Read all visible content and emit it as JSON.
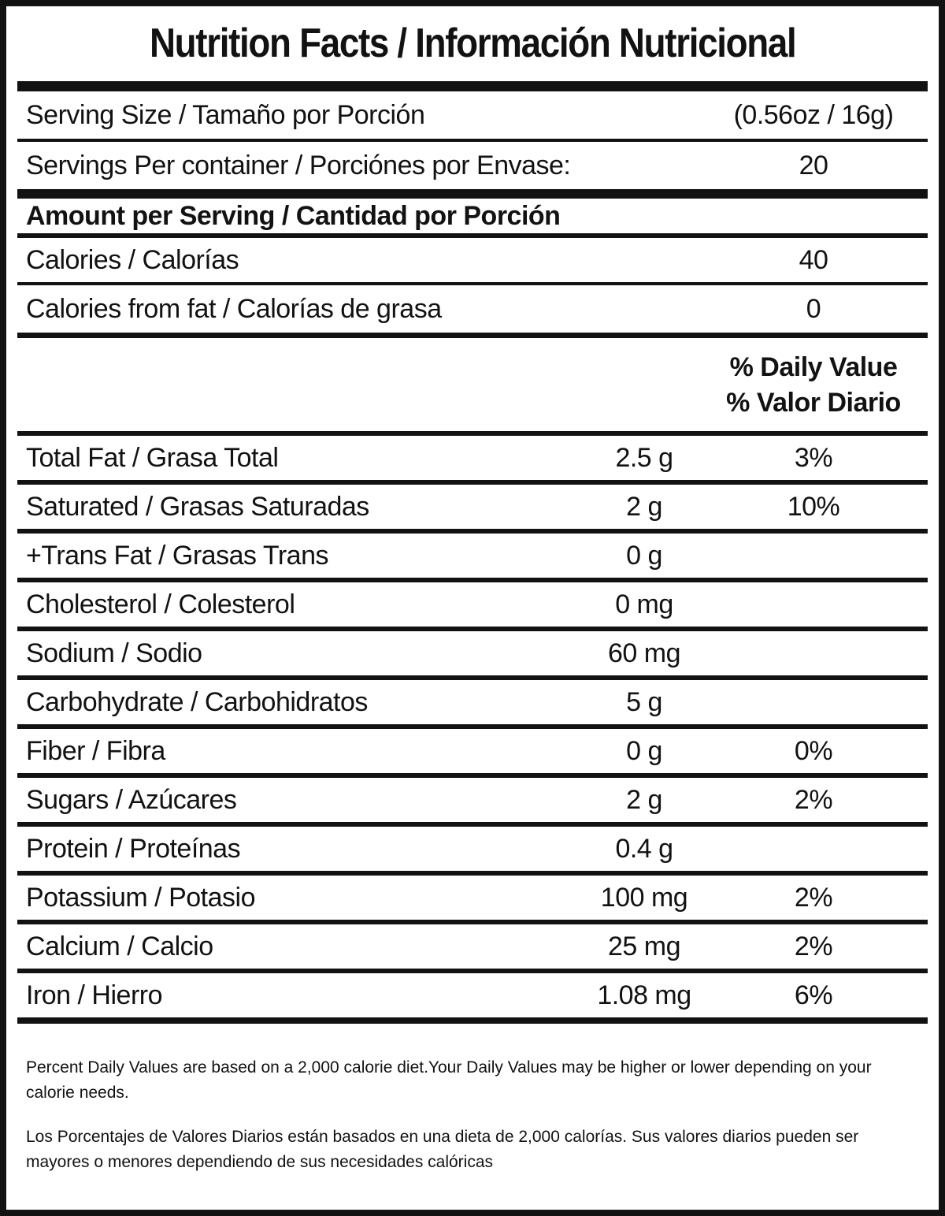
{
  "title": "Nutrition Facts / Información Nutricional",
  "serving_size": {
    "label": "Serving Size / Tamaño por Porción",
    "value": "(0.56oz / 16g)"
  },
  "servings_per_container": {
    "label": "Servings Per container / Porciónes por Envase:",
    "value": "20"
  },
  "amount_header": "Amount per Serving / Cantidad por Porción",
  "calories": {
    "label": "Calories / Calorías",
    "value": "40"
  },
  "calories_from_fat": {
    "label": "Calories from fat / Calorías de grasa",
    "value": "0"
  },
  "daily_value_header": {
    "line1": "% Daily Value",
    "line2": "% Valor Diario"
  },
  "nutrients": [
    {
      "label": "Total Fat / Grasa Total",
      "amount": "2.5 g",
      "dv": "3%"
    },
    {
      "label": "Saturated / Grasas Saturadas",
      "amount": "2 g",
      "dv": "10%"
    },
    {
      "label": "+Trans Fat / Grasas Trans",
      "amount": "0 g",
      "dv": ""
    },
    {
      "label": "Cholesterol / Colesterol",
      "amount": "0 mg",
      "dv": ""
    },
    {
      "label": "Sodium / Sodio",
      "amount": "60 mg",
      "dv": ""
    },
    {
      "label": "Carbohydrate / Carbohidratos",
      "amount": "5 g",
      "dv": ""
    },
    {
      "label": "Fiber / Fibra",
      "amount": "0 g",
      "dv": "0%"
    },
    {
      "label": "Sugars / Azúcares",
      "amount": "2 g",
      "dv": "2%"
    },
    {
      "label": "Protein / Proteínas",
      "amount": "0.4 g",
      "dv": ""
    },
    {
      "label": "Potassium / Potasio",
      "amount": "100 mg",
      "dv": "2%"
    },
    {
      "label": "Calcium / Calcio",
      "amount": "25 mg",
      "dv": "2%"
    },
    {
      "label": "Iron / Hierro",
      "amount": "1.08 mg",
      "dv": "6%"
    }
  ],
  "footnotes": {
    "english": "Percent Daily Values are based on a 2,000 calorie diet.Your Daily Values may be higher or lower depending on your calorie needs.",
    "spanish": "Los Porcentajes de Valores Diarios están basados en una dieta de 2,000 calorías. Sus valores diarios pueden ser mayores o menores dependiendo de sus necesidades calóricas"
  },
  "colors": {
    "ink": "#121212",
    "background": "#ffffff"
  }
}
